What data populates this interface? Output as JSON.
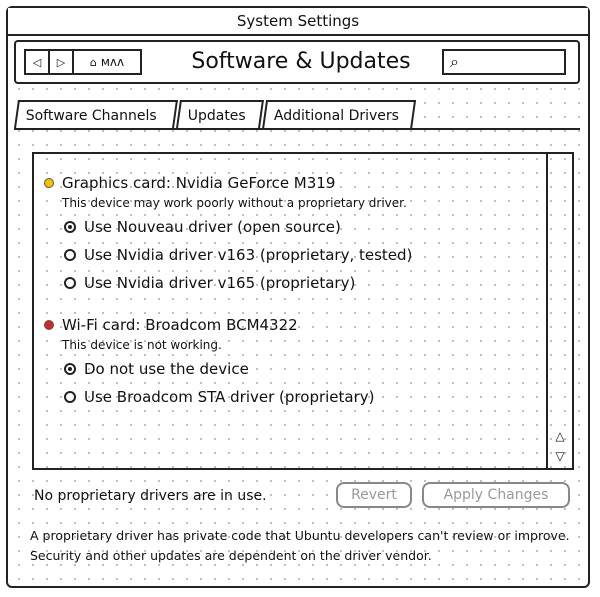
{
  "window": {
    "title": "System Settings"
  },
  "toolbar": {
    "back_glyph": "◁",
    "forward_glyph": "▷",
    "home_glyph": "⌂",
    "home_label": "ᴍᴧᴧ",
    "page_title": "Software & Updates",
    "search_glyph": "⌕"
  },
  "tabs": [
    {
      "label": "Software Channels"
    },
    {
      "label": "Updates"
    },
    {
      "label": "Additional Drivers"
    }
  ],
  "devices": [
    {
      "title": "Graphics card: Nvidia GeForce M319",
      "description": "This device may work poorly without a proprietary driver.",
      "status_color": "#f2c400",
      "options": [
        {
          "label": "Use Nouveau driver (open source)",
          "selected": true
        },
        {
          "label": "Use Nvidia driver v163 (proprietary, tested)",
          "selected": false
        },
        {
          "label": "Use Nvidia driver v165 (proprietary)",
          "selected": false
        }
      ]
    },
    {
      "title": "Wi-Fi card: Broadcom BCM4322",
      "description": "This device is not working.",
      "status_color": "#cc2a2a",
      "options": [
        {
          "label": "Do not use the device",
          "selected": true
        },
        {
          "label": "Use Broadcom STA driver (proprietary)",
          "selected": false
        }
      ]
    }
  ],
  "scrollbar": {
    "up_glyph": "△",
    "down_glyph": "▽"
  },
  "status_text": "No proprietary drivers are in use.",
  "buttons": {
    "revert": "Revert",
    "apply": "Apply Changes"
  },
  "footer_text": "A proprietary driver has private code that Ubuntu developers can't review or improve. Security and other updates are dependent on the driver vendor."
}
